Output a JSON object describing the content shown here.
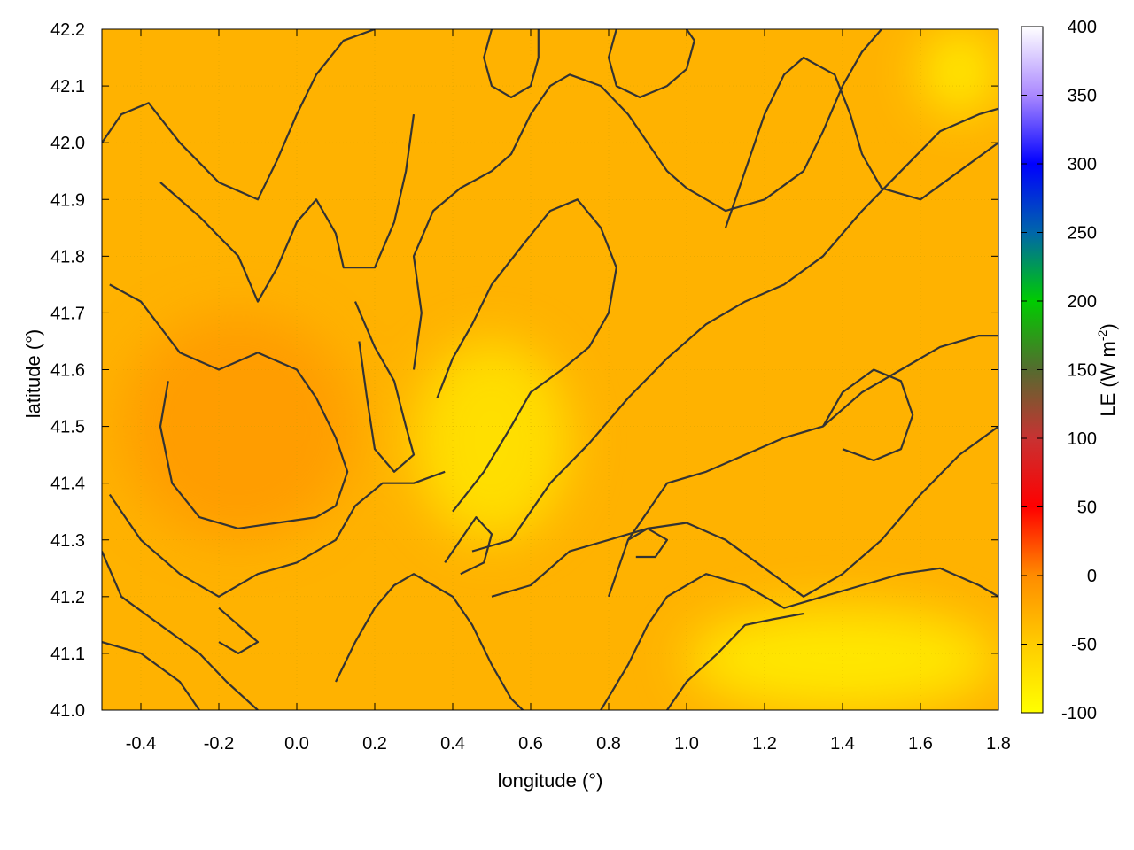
{
  "chart_data": {
    "type": "heatmap",
    "title": "",
    "xlabel": "longitude (°)",
    "ylabel": "latitude (°)",
    "xlim": [
      -0.5,
      1.8
    ],
    "ylim": [
      41.0,
      42.2
    ],
    "x_ticks": [
      "-0.4",
      "-0.2",
      "0.0",
      "0.2",
      "0.4",
      "0.6",
      "0.8",
      "1.0",
      "1.2",
      "1.4",
      "1.6",
      "1.8"
    ],
    "x_tick_values": [
      -0.4,
      -0.2,
      0.0,
      0.2,
      0.4,
      0.6,
      0.8,
      1.0,
      1.2,
      1.4,
      1.6,
      1.8
    ],
    "y_ticks": [
      "41.0",
      "41.1",
      "41.2",
      "41.3",
      "41.4",
      "41.5",
      "41.6",
      "41.7",
      "41.8",
      "41.9",
      "42.0",
      "42.1",
      "42.2"
    ],
    "y_tick_values": [
      41.0,
      41.1,
      41.2,
      41.3,
      41.4,
      41.5,
      41.6,
      41.7,
      41.8,
      41.9,
      42.0,
      42.1,
      42.2
    ],
    "grid": true,
    "colorbar": {
      "label_main": "LE (W m",
      "label_sup": "-2",
      "label_close": ")",
      "range": [
        -100,
        400
      ],
      "ticks": [
        "-100",
        "-50",
        "0",
        "50",
        "100",
        "150",
        "200",
        "250",
        "300",
        "350",
        "400"
      ],
      "tick_values": [
        -100,
        -50,
        0,
        50,
        100,
        150,
        200,
        250,
        300,
        350,
        400
      ],
      "stops": [
        {
          "value": -100,
          "color": "#ffff00"
        },
        {
          "value": -50,
          "color": "#ffcc00"
        },
        {
          "value": 0,
          "color": "#ff8c00"
        },
        {
          "value": 50,
          "color": "#ff0000"
        },
        {
          "value": 100,
          "color": "#c83232"
        },
        {
          "value": 150,
          "color": "#556b2f"
        },
        {
          "value": 200,
          "color": "#00cc00"
        },
        {
          "value": 250,
          "color": "#0066aa"
        },
        {
          "value": 300,
          "color": "#0000ff"
        },
        {
          "value": 350,
          "color": "#aa88ff"
        },
        {
          "value": 400,
          "color": "#ffffff"
        }
      ]
    },
    "field_regions": [
      {
        "name": "coastal-sea",
        "lon": [
          1.0,
          1.8
        ],
        "lat": [
          41.0,
          41.18
        ],
        "value": -85
      },
      {
        "name": "central-valley",
        "lon": [
          0.3,
          0.7
        ],
        "lat": [
          41.3,
          41.65
        ],
        "value": -75
      },
      {
        "name": "ne-corner",
        "lon": [
          1.6,
          1.8
        ],
        "lat": [
          42.05,
          42.2
        ],
        "value": -90
      },
      {
        "name": "western-plain",
        "lon": [
          -0.45,
          0.15
        ],
        "lat": [
          41.3,
          41.7
        ],
        "value": -10
      },
      {
        "name": "background",
        "lon": [
          -0.5,
          1.8
        ],
        "lat": [
          41.0,
          42.2
        ],
        "value": -30
      }
    ],
    "contours": [
      [
        [
          -0.5,
          42.0
        ],
        [
          -0.45,
          42.05
        ],
        [
          -0.38,
          42.07
        ],
        [
          -0.3,
          42.0
        ],
        [
          -0.2,
          41.93
        ],
        [
          -0.1,
          41.9
        ],
        [
          -0.05,
          41.97
        ],
        [
          0.0,
          42.05
        ],
        [
          0.05,
          42.12
        ],
        [
          0.12,
          42.18
        ],
        [
          0.2,
          42.2
        ]
      ],
      [
        [
          -0.35,
          41.93
        ],
        [
          -0.25,
          41.87
        ],
        [
          -0.15,
          41.8
        ],
        [
          -0.1,
          41.72
        ],
        [
          -0.05,
          41.78
        ],
        [
          0.0,
          41.86
        ],
        [
          0.05,
          41.9
        ],
        [
          0.1,
          41.84
        ],
        [
          0.12,
          41.78
        ],
        [
          0.2,
          41.78
        ],
        [
          0.25,
          41.86
        ],
        [
          0.28,
          41.95
        ],
        [
          0.3,
          42.05
        ]
      ],
      [
        [
          -0.48,
          41.75
        ],
        [
          -0.4,
          41.72
        ],
        [
          -0.3,
          41.63
        ],
        [
          -0.2,
          41.6
        ],
        [
          -0.1,
          41.63
        ],
        [
          0.0,
          41.6
        ],
        [
          0.05,
          41.55
        ],
        [
          0.1,
          41.48
        ],
        [
          0.13,
          41.42
        ],
        [
          0.1,
          41.36
        ],
        [
          0.05,
          41.34
        ],
        [
          -0.05,
          41.33
        ],
        [
          -0.15,
          41.32
        ],
        [
          -0.25,
          41.34
        ],
        [
          -0.32,
          41.4
        ],
        [
          -0.35,
          41.5
        ],
        [
          -0.33,
          41.58
        ]
      ],
      [
        [
          -0.48,
          41.38
        ],
        [
          -0.4,
          41.3
        ],
        [
          -0.3,
          41.24
        ],
        [
          -0.2,
          41.2
        ],
        [
          -0.1,
          41.24
        ],
        [
          0.0,
          41.26
        ],
        [
          0.05,
          41.28
        ],
        [
          0.1,
          41.3
        ],
        [
          0.15,
          41.36
        ],
        [
          0.22,
          41.4
        ],
        [
          0.3,
          41.4
        ],
        [
          0.38,
          41.42
        ]
      ],
      [
        [
          -0.5,
          41.28
        ],
        [
          -0.45,
          41.2
        ],
        [
          -0.35,
          41.15
        ],
        [
          -0.25,
          41.1
        ],
        [
          -0.18,
          41.05
        ],
        [
          -0.1,
          41.0
        ]
      ],
      [
        [
          -0.5,
          41.12
        ],
        [
          -0.4,
          41.1
        ],
        [
          -0.3,
          41.05
        ],
        [
          -0.25,
          41.0
        ]
      ],
      [
        [
          0.1,
          41.05
        ],
        [
          0.15,
          41.12
        ],
        [
          0.2,
          41.18
        ],
        [
          0.25,
          41.22
        ],
        [
          0.3,
          41.24
        ],
        [
          0.35,
          41.22
        ],
        [
          0.4,
          41.2
        ],
        [
          0.45,
          41.15
        ],
        [
          0.5,
          41.08
        ],
        [
          0.55,
          41.02
        ],
        [
          0.58,
          41.0
        ]
      ],
      [
        [
          0.45,
          41.28
        ],
        [
          0.55,
          41.3
        ],
        [
          0.6,
          41.35
        ],
        [
          0.65,
          41.4
        ],
        [
          0.75,
          41.47
        ],
        [
          0.85,
          41.55
        ],
        [
          0.95,
          41.62
        ],
        [
          1.05,
          41.68
        ],
        [
          1.15,
          41.72
        ],
        [
          1.25,
          41.75
        ],
        [
          1.35,
          41.8
        ],
        [
          1.45,
          41.88
        ],
        [
          1.55,
          41.95
        ],
        [
          1.65,
          42.02
        ],
        [
          1.75,
          42.05
        ],
        [
          1.8,
          42.06
        ]
      ],
      [
        [
          0.4,
          41.35
        ],
        [
          0.48,
          41.42
        ],
        [
          0.55,
          41.5
        ],
        [
          0.6,
          41.56
        ],
        [
          0.68,
          41.6
        ],
        [
          0.75,
          41.64
        ],
        [
          0.8,
          41.7
        ],
        [
          0.82,
          41.78
        ],
        [
          0.78,
          41.85
        ],
        [
          0.72,
          41.9
        ],
        [
          0.65,
          41.88
        ],
        [
          0.58,
          41.82
        ],
        [
          0.5,
          41.75
        ],
        [
          0.45,
          41.68
        ],
        [
          0.4,
          41.62
        ],
        [
          0.36,
          41.55
        ]
      ],
      [
        [
          0.5,
          41.2
        ],
        [
          0.6,
          41.22
        ],
        [
          0.7,
          41.28
        ],
        [
          0.8,
          41.3
        ],
        [
          0.9,
          41.32
        ],
        [
          1.0,
          41.33
        ],
        [
          1.1,
          41.3
        ],
        [
          1.2,
          41.25
        ],
        [
          1.3,
          41.2
        ],
        [
          1.4,
          41.24
        ],
        [
          1.5,
          41.3
        ],
        [
          1.6,
          41.38
        ],
        [
          1.7,
          41.45
        ],
        [
          1.8,
          41.5
        ]
      ],
      [
        [
          0.78,
          41.0
        ],
        [
          0.85,
          41.08
        ],
        [
          0.9,
          41.15
        ],
        [
          0.95,
          41.2
        ],
        [
          1.05,
          41.24
        ],
        [
          1.15,
          41.22
        ],
        [
          1.25,
          41.18
        ],
        [
          1.35,
          41.2
        ],
        [
          1.45,
          41.22
        ],
        [
          1.55,
          41.24
        ],
        [
          1.65,
          41.25
        ],
        [
          1.75,
          41.22
        ],
        [
          1.8,
          41.2
        ]
      ],
      [
        [
          0.95,
          41.0
        ],
        [
          1.0,
          41.05
        ],
        [
          1.08,
          41.1
        ],
        [
          1.15,
          41.15
        ],
        [
          1.22,
          41.16
        ],
        [
          1.3,
          41.17
        ]
      ],
      [
        [
          0.8,
          41.2
        ],
        [
          0.85,
          41.3
        ],
        [
          0.9,
          41.35
        ],
        [
          0.95,
          41.4
        ],
        [
          1.05,
          41.42
        ],
        [
          1.15,
          41.45
        ],
        [
          1.25,
          41.48
        ],
        [
          1.35,
          41.5
        ],
        [
          1.45,
          41.56
        ],
        [
          1.55,
          41.6
        ],
        [
          1.65,
          41.64
        ],
        [
          1.75,
          41.66
        ],
        [
          1.8,
          41.66
        ]
      ],
      [
        [
          0.3,
          41.6
        ],
        [
          0.32,
          41.7
        ],
        [
          0.3,
          41.8
        ],
        [
          0.35,
          41.88
        ],
        [
          0.42,
          41.92
        ],
        [
          0.5,
          41.95
        ],
        [
          0.55,
          41.98
        ],
        [
          0.6,
          42.05
        ],
        [
          0.65,
          42.1
        ],
        [
          0.7,
          42.12
        ],
        [
          0.78,
          42.1
        ],
        [
          0.85,
          42.05
        ],
        [
          0.9,
          42.0
        ],
        [
          0.95,
          41.95
        ],
        [
          1.0,
          41.92
        ],
        [
          1.1,
          41.88
        ],
        [
          1.2,
          41.9
        ],
        [
          1.3,
          41.95
        ],
        [
          1.35,
          42.02
        ],
        [
          1.4,
          42.1
        ],
        [
          1.45,
          42.16
        ],
        [
          1.5,
          42.2
        ]
      ],
      [
        [
          0.5,
          42.2
        ],
        [
          0.48,
          42.15
        ],
        [
          0.5,
          42.1
        ],
        [
          0.55,
          42.08
        ],
        [
          0.6,
          42.1
        ],
        [
          0.62,
          42.15
        ],
        [
          0.62,
          42.2
        ]
      ],
      [
        [
          0.82,
          42.2
        ],
        [
          0.8,
          42.15
        ],
        [
          0.82,
          42.1
        ],
        [
          0.88,
          42.08
        ],
        [
          0.95,
          42.1
        ],
        [
          1.0,
          42.13
        ],
        [
          1.02,
          42.18
        ],
        [
          1.0,
          42.2
        ]
      ],
      [
        [
          1.1,
          41.85
        ],
        [
          1.15,
          41.95
        ],
        [
          1.2,
          42.05
        ],
        [
          1.25,
          42.12
        ],
        [
          1.3,
          42.15
        ],
        [
          1.38,
          42.12
        ],
        [
          1.42,
          42.05
        ],
        [
          1.45,
          41.98
        ],
        [
          1.5,
          41.92
        ],
        [
          1.6,
          41.9
        ],
        [
          1.7,
          41.95
        ],
        [
          1.8,
          42.0
        ]
      ],
      [
        [
          0.15,
          41.72
        ],
        [
          0.2,
          41.64
        ],
        [
          0.25,
          41.58
        ],
        [
          0.28,
          41.5
        ],
        [
          0.3,
          41.45
        ],
        [
          0.25,
          41.42
        ],
        [
          0.2,
          41.46
        ],
        [
          0.18,
          41.55
        ],
        [
          0.16,
          41.65
        ]
      ],
      [
        [
          0.38,
          41.26
        ],
        [
          0.42,
          41.3
        ],
        [
          0.46,
          41.34
        ],
        [
          0.5,
          41.31
        ],
        [
          0.48,
          41.26
        ],
        [
          0.42,
          41.24
        ]
      ],
      [
        [
          0.85,
          41.3
        ],
        [
          0.9,
          41.32
        ],
        [
          0.95,
          41.3
        ],
        [
          0.92,
          41.27
        ],
        [
          0.87,
          41.27
        ]
      ],
      [
        [
          1.35,
          41.5
        ],
        [
          1.4,
          41.56
        ],
        [
          1.48,
          41.6
        ],
        [
          1.55,
          41.58
        ],
        [
          1.58,
          41.52
        ],
        [
          1.55,
          41.46
        ],
        [
          1.48,
          41.44
        ],
        [
          1.4,
          41.46
        ]
      ],
      [
        [
          -0.2,
          41.18
        ],
        [
          -0.15,
          41.15
        ],
        [
          -0.1,
          41.12
        ],
        [
          -0.15,
          41.1
        ],
        [
          -0.2,
          41.12
        ]
      ]
    ]
  }
}
